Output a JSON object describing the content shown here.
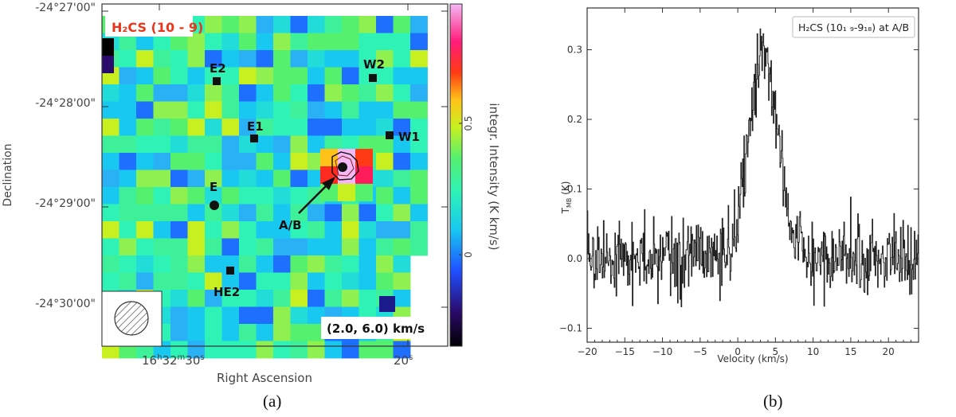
{
  "chart_data": [
    {
      "type": "heatmap",
      "panel": "(a)",
      "title": "H₂CS (10 - 9)",
      "xlabel": "Right Ascension",
      "ylabel": "Declination",
      "x_ticks": [
        {
          "main": "16",
          "sup1": "h",
          "mid": "32",
          "sup2": "m",
          "sec": "30",
          "sup3": "s"
        },
        {
          "main": "",
          "sup1": "",
          "mid": "",
          "sup2": "",
          "sec": "20",
          "sup3": "s"
        }
      ],
      "y_ticks": [
        "-24°27'00\"",
        "-24°28'00\"",
        "-24°29'00\"",
        "-24°30'00\""
      ],
      "colorbar": {
        "label": "integr. Intensity (K km/s)",
        "ticks": [
          "0.5",
          "0"
        ],
        "range": [
          -0.3,
          0.95
        ]
      },
      "velocity_range_label": "(2.0, 6.0) km/s",
      "arrow_label": "A/B",
      "sources": [
        {
          "name": "E2",
          "marker": "square"
        },
        {
          "name": "W2",
          "marker": "square"
        },
        {
          "name": "E1",
          "marker": "square"
        },
        {
          "name": "W1",
          "marker": "square"
        },
        {
          "name": "E",
          "marker": "circle"
        },
        {
          "name": "HE2",
          "marker": "square"
        },
        {
          "name": "A/B",
          "marker": "circle"
        }
      ],
      "peak_intensity": 0.9
    },
    {
      "type": "line",
      "panel": "(b)",
      "legend": "H₂CS (10₁ ₉-9₁₈) at A/B",
      "xlabel": "Velocity (km/s)",
      "ylabel_main": "T",
      "ylabel_sub": "MB",
      "ylabel_unit": " (K)",
      "xlim": [
        -20,
        24
      ],
      "ylim": [
        -0.12,
        0.36
      ],
      "x_ticks": [
        -20,
        -15,
        -10,
        -5,
        0,
        5,
        10,
        15,
        20
      ],
      "y_ticks": [
        -0.1,
        0.0,
        0.1,
        0.2,
        0.3
      ],
      "series": [
        {
          "name": "H2CS at A/B",
          "profile": {
            "baseline_rms": 0.04,
            "peak_velocity": 3.4,
            "peak_value": 0.29,
            "fwhm": 4.5,
            "channel_width": 0.08
          }
        }
      ]
    }
  ],
  "captions": {
    "a": "(a)",
    "b": "(b)"
  }
}
